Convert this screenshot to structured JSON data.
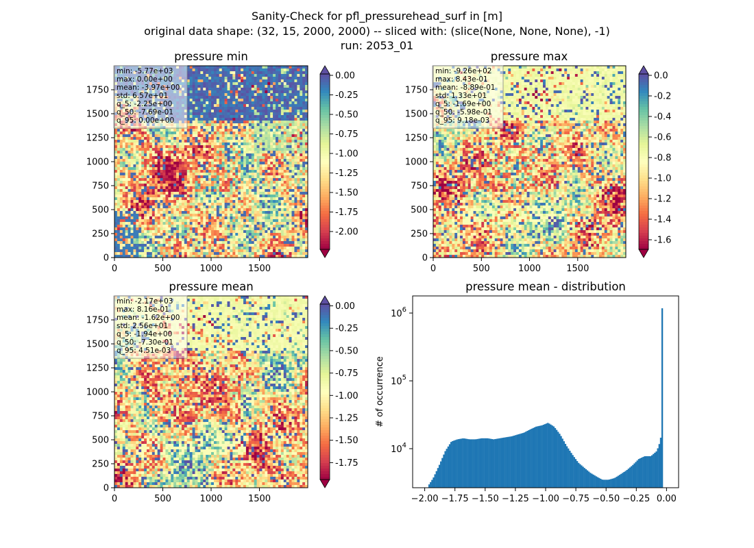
{
  "suptitle": {
    "line1": "Sanity-Check for pfl_pressurehead_surf in [m]",
    "line2": "original data shape: (32, 15, 2000, 2000) -- sliced with: (slice(None, None, None), -1)",
    "line3": "run: 2053_01"
  },
  "panels": [
    {
      "title": "pressure min",
      "stats": [
        "min: -5.77e+03",
        "max: 0.00e+00",
        "mean: -3.97e+00",
        "std: 6.57e+01",
        "q_5: -2.25e+00",
        "q_50: -7.69e-01",
        "q_95: 0.00e+00"
      ],
      "xticks": [
        "0",
        "500",
        "1000",
        "1500"
      ],
      "yticks": [
        "0",
        "250",
        "500",
        "750",
        "1000",
        "1250",
        "1500",
        "1750"
      ],
      "colorbar": {
        "ticks": [
          "0.00",
          "-0.25",
          "-0.50",
          "-0.75",
          "-1.00",
          "-1.25",
          "-1.50",
          "-1.75",
          "-2.00"
        ],
        "vmin": -2.25,
        "vmax": 0.0,
        "extend": "both"
      }
    },
    {
      "title": "pressure max",
      "stats": [
        "min: -9.26e+02",
        "max: 8.43e-01",
        "mean: -8.89e-01",
        "std: 1.33e+01",
        "q_5: -1.69e+00",
        "q_50: -5.98e-01",
        "q_95: 9.18e-03"
      ],
      "xticks": [
        "0",
        "500",
        "1000",
        "1500"
      ],
      "yticks": [
        "0",
        "250",
        "500",
        "750",
        "1000",
        "1250",
        "1500",
        "1750"
      ],
      "colorbar": {
        "ticks": [
          "0.0",
          "-0.2",
          "-0.4",
          "-0.6",
          "-0.8",
          "-1.0",
          "-1.2",
          "-1.4",
          "-1.6"
        ],
        "vmin": -1.69,
        "vmax": 0.0092,
        "extend": "both"
      }
    },
    {
      "title": "pressure mean",
      "stats": [
        "min: -2.17e+03",
        "max: 8.16e-01",
        "mean: -1.62e+00",
        "std: 2.56e+01",
        "q_5: -1.94e+00",
        "q_50: -7.30e-01",
        "q_95: 4.51e-03"
      ],
      "xticks": [
        "0",
        "500",
        "1000",
        "1500"
      ],
      "yticks": [
        "0",
        "250",
        "500",
        "750",
        "1000",
        "1250",
        "1500",
        "1750"
      ],
      "colorbar": {
        "ticks": [
          "0.00",
          "-0.25",
          "-0.50",
          "-0.75",
          "-1.00",
          "-1.25",
          "-1.50",
          "-1.75"
        ],
        "vmin": -1.94,
        "vmax": 0.0045,
        "extend": "both"
      }
    }
  ],
  "histogram": {
    "title": "pressure mean - distribution",
    "ylabel": "# of occurrence",
    "xticks": [
      "−2.00",
      "−1.75",
      "−1.50",
      "−1.25",
      "−1.00",
      "−0.75",
      "−0.50",
      "−0.25",
      "0.00"
    ],
    "yticks": [
      {
        "base": "10",
        "exp": "4"
      },
      {
        "base": "10",
        "exp": "5"
      },
      {
        "base": "10",
        "exp": "6"
      }
    ]
  },
  "colors": {
    "bar": "#1f77b4",
    "spectral": [
      "#9e0142",
      "#d53e4f",
      "#f46d43",
      "#fdae61",
      "#fee08b",
      "#ffffbf",
      "#e6f598",
      "#abdda4",
      "#66c2a5",
      "#3288bd",
      "#5e4fa2"
    ]
  },
  "chart_data": [
    {
      "type": "heatmap",
      "title": "pressure min",
      "x_range": [
        0,
        2000
      ],
      "y_range": [
        0,
        2000
      ],
      "color_range": [
        -2.25,
        0.0
      ],
      "colormap": "Spectral"
    },
    {
      "type": "heatmap",
      "title": "pressure max",
      "x_range": [
        0,
        2000
      ],
      "y_range": [
        0,
        2000
      ],
      "color_range": [
        -1.69,
        0.0092
      ],
      "colormap": "Spectral"
    },
    {
      "type": "heatmap",
      "title": "pressure mean",
      "x_range": [
        0,
        2000
      ],
      "y_range": [
        0,
        2000
      ],
      "color_range": [
        -1.94,
        0.0045
      ],
      "colormap": "Spectral"
    },
    {
      "type": "bar",
      "title": "pressure mean - distribution",
      "ylabel": "# of occurrence",
      "yscale": "log",
      "xlim": [
        -2.07,
        0.13
      ],
      "ylim": [
        2500,
        2000000
      ],
      "x": [
        -1.94,
        -1.9,
        -1.85,
        -1.8,
        -1.75,
        -1.7,
        -1.65,
        -1.6,
        -1.55,
        -1.5,
        -1.45,
        -1.4,
        -1.35,
        -1.3,
        -1.25,
        -1.2,
        -1.15,
        -1.1,
        -1.05,
        -1.0,
        -0.95,
        -0.9,
        -0.85,
        -0.8,
        -0.75,
        -0.7,
        -0.65,
        -0.6,
        -0.55,
        -0.5,
        -0.45,
        -0.4,
        -0.35,
        -0.3,
        -0.25,
        -0.2,
        -0.15,
        -0.1,
        -0.05,
        -0.02,
        -0.01,
        0.0
      ],
      "y": [
        2700,
        3500,
        5500,
        9000,
        12500,
        13500,
        14000,
        13500,
        13500,
        14000,
        14000,
        13500,
        14000,
        14500,
        15000,
        16000,
        17000,
        19000,
        21000,
        22000,
        24000,
        21000,
        16000,
        11000,
        8000,
        6000,
        5000,
        4200,
        3700,
        3300,
        3300,
        3500,
        4000,
        4600,
        5500,
        6800,
        7500,
        7500,
        9000,
        13000,
        22000,
        1300000
      ]
    }
  ]
}
